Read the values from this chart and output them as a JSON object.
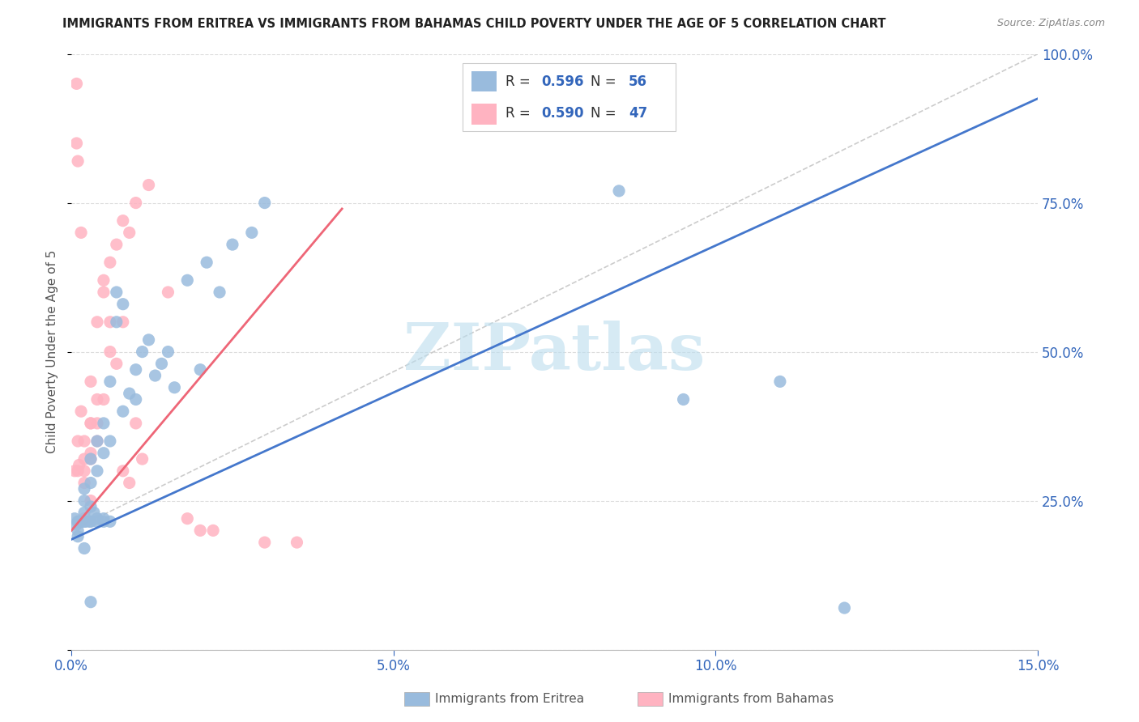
{
  "title": "IMMIGRANTS FROM ERITREA VS IMMIGRANTS FROM BAHAMAS CHILD POVERTY UNDER THE AGE OF 5 CORRELATION CHART",
  "source": "Source: ZipAtlas.com",
  "ylabel": "Child Poverty Under the Age of 5",
  "xlim": [
    0,
    0.15
  ],
  "ylim": [
    0,
    1.0
  ],
  "xticks": [
    0.0,
    0.05,
    0.1,
    0.15
  ],
  "xticklabels": [
    "0.0%",
    "5.0%",
    "10.0%",
    "15.0%"
  ],
  "yticks": [
    0.0,
    0.25,
    0.5,
    0.75,
    1.0
  ],
  "yticklabels": [
    "",
    "25.0%",
    "50.0%",
    "75.0%",
    "100.0%"
  ],
  "legend_labels": [
    "Immigrants from Eritrea",
    "Immigrants from Bahamas"
  ],
  "legend_R": [
    0.596,
    0.59
  ],
  "legend_N": [
    56,
    47
  ],
  "blue_color": "#99BBDD",
  "pink_color": "#FFB3C1",
  "blue_line_color": "#4477CC",
  "pink_line_color": "#EE6677",
  "watermark": "ZIPatlas",
  "watermark_color": "#BBDDEE",
  "blue_line_x0": 0.0,
  "blue_line_y0": 0.185,
  "blue_line_x1": 0.15,
  "blue_line_y1": 0.925,
  "pink_line_x0": 0.0,
  "pink_line_y0": 0.2,
  "pink_line_x1": 0.042,
  "pink_line_y1": 0.74,
  "gray_line_x0": 0.0,
  "gray_line_y0": 0.2,
  "gray_line_x1": 0.15,
  "gray_line_y1": 1.0,
  "eritrea_x": [
    0.0005,
    0.001,
    0.001,
    0.0015,
    0.002,
    0.002,
    0.002,
    0.002,
    0.003,
    0.003,
    0.003,
    0.003,
    0.004,
    0.004,
    0.004,
    0.005,
    0.005,
    0.005,
    0.006,
    0.006,
    0.007,
    0.007,
    0.008,
    0.008,
    0.009,
    0.01,
    0.01,
    0.011,
    0.012,
    0.013,
    0.014,
    0.015,
    0.016,
    0.018,
    0.02,
    0.021,
    0.023,
    0.025,
    0.028,
    0.03,
    0.001,
    0.0008,
    0.0012,
    0.0018,
    0.0022,
    0.0028,
    0.0035,
    0.004,
    0.005,
    0.006,
    0.085,
    0.095,
    0.11,
    0.12,
    0.002,
    0.003
  ],
  "eritrea_y": [
    0.22,
    0.2,
    0.19,
    0.215,
    0.23,
    0.25,
    0.27,
    0.215,
    0.24,
    0.28,
    0.32,
    0.215,
    0.3,
    0.35,
    0.22,
    0.38,
    0.33,
    0.22,
    0.45,
    0.35,
    0.6,
    0.55,
    0.58,
    0.4,
    0.43,
    0.47,
    0.42,
    0.5,
    0.52,
    0.46,
    0.48,
    0.5,
    0.44,
    0.62,
    0.47,
    0.65,
    0.6,
    0.68,
    0.7,
    0.75,
    0.215,
    0.21,
    0.215,
    0.215,
    0.215,
    0.215,
    0.23,
    0.215,
    0.215,
    0.215,
    0.77,
    0.42,
    0.45,
    0.07,
    0.17,
    0.08
  ],
  "bahamas_x": [
    0.0005,
    0.001,
    0.001,
    0.0012,
    0.0015,
    0.002,
    0.002,
    0.002,
    0.003,
    0.003,
    0.003,
    0.004,
    0.004,
    0.005,
    0.005,
    0.006,
    0.006,
    0.007,
    0.008,
    0.009,
    0.01,
    0.012,
    0.015,
    0.018,
    0.02,
    0.022,
    0.03,
    0.035,
    0.0008,
    0.0008,
    0.001,
    0.0015,
    0.002,
    0.002,
    0.003,
    0.003,
    0.003,
    0.004,
    0.004,
    0.005,
    0.006,
    0.007,
    0.008,
    0.008,
    0.009,
    0.01,
    0.011
  ],
  "bahamas_y": [
    0.3,
    0.3,
    0.35,
    0.31,
    0.4,
    0.32,
    0.35,
    0.28,
    0.33,
    0.38,
    0.32,
    0.38,
    0.55,
    0.42,
    0.6,
    0.55,
    0.65,
    0.68,
    0.72,
    0.7,
    0.75,
    0.78,
    0.6,
    0.22,
    0.2,
    0.2,
    0.18,
    0.18,
    0.85,
    0.95,
    0.82,
    0.7,
    0.3,
    0.22,
    0.45,
    0.38,
    0.25,
    0.42,
    0.35,
    0.62,
    0.5,
    0.48,
    0.55,
    0.3,
    0.28,
    0.38,
    0.32
  ]
}
